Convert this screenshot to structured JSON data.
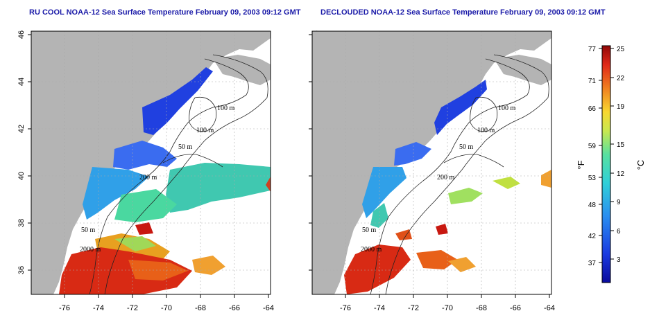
{
  "left_panel": {
    "title": "RU COOL NOAA-12 Sea Surface Temperature February 09, 2003 09:12 GMT"
  },
  "right_panel": {
    "title": "DECLOUDED NOAA-12 Sea Surface Temperature February 09, 2003 09:12 GMT"
  },
  "axes": {
    "lon_ticks": [
      "-76",
      "-74",
      "-72",
      "-70",
      "-68",
      "-66",
      "-64"
    ],
    "lat_ticks": [
      "46",
      "44",
      "42",
      "40",
      "38",
      "36"
    ]
  },
  "contours": [
    "100 m",
    "100 m",
    "50 m",
    "200 m",
    "50 m",
    "2000 m"
  ],
  "colorbar": {
    "f_unit": "°F",
    "c_unit": "°C",
    "f_ticks": [
      "77",
      "71",
      "66",
      "59",
      "53",
      "48",
      "42",
      "37"
    ],
    "c_ticks": [
      "25",
      "22",
      "19",
      "15",
      "12",
      "9",
      "6",
      "3"
    ]
  },
  "colors": {
    "land": "#b4b4b4",
    "title": "#1a1aa8"
  }
}
